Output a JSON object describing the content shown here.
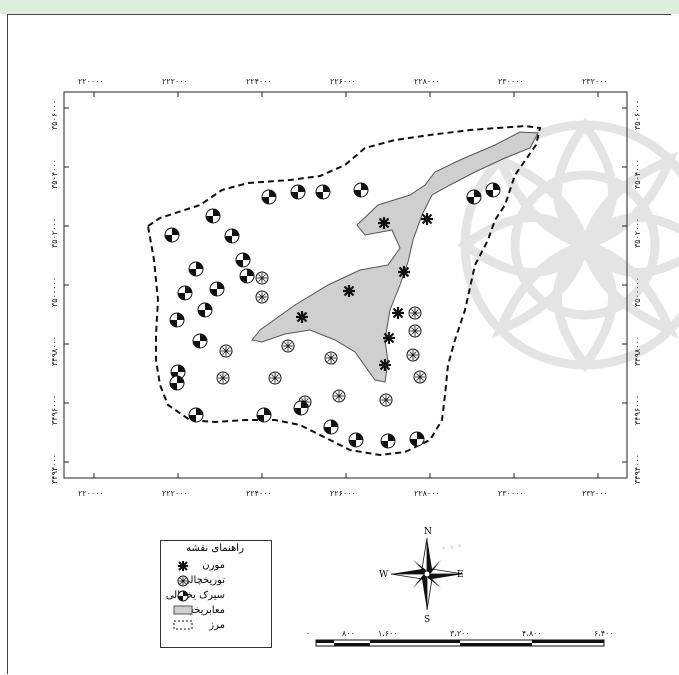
{
  "map": {
    "x_ticks": [
      "۲۲۰۰۰۰",
      "۲۲۲۰۰۰",
      "۲۲۴۰۰۰",
      "۲۲۶۰۰۰",
      "۲۲۸۰۰۰",
      "۲۳۰۰۰۰",
      "۲۳۲۰۰۰"
    ],
    "y_ticks": [
      "۳۵۰۶۰۰۰",
      "۳۵۰۴۰۰۰",
      "۳۵۰۲۰۰۰",
      "۳۵۰۰۰۰۰",
      "۳۴۹۸۰۰۰",
      "۳۴۹۶۰۰۰",
      "۳۴۹۴۰۰۰"
    ]
  },
  "legend": {
    "title": "راهنمای نقشه",
    "items": [
      {
        "label": "مورن",
        "symbol": "asterisk-icon"
      },
      {
        "label": "توریخچالی",
        "symbol": "circle-star-icon"
      },
      {
        "label": "سیرک یخچالی",
        "symbol": "cirque-icon"
      },
      {
        "label": "معابریخچالی",
        "symbol": "glacier-fill-icon"
      },
      {
        "label": "مرز",
        "symbol": "boundary-dash-icon"
      }
    ]
  },
  "north_arrow": {
    "n": "N",
    "s": "S",
    "e": "E",
    "w": "W"
  },
  "scale_bar": {
    "labels": [
      "۰",
      "۸۰۰",
      "۱،۶۰۰",
      "۳،۲۰۰",
      "۴،۸۰۰",
      "۶،۴۰۰"
    ]
  },
  "colors": {
    "glacier": "#cfcfcf",
    "boundary": "#111111",
    "watermark": "#e4e4e4"
  }
}
